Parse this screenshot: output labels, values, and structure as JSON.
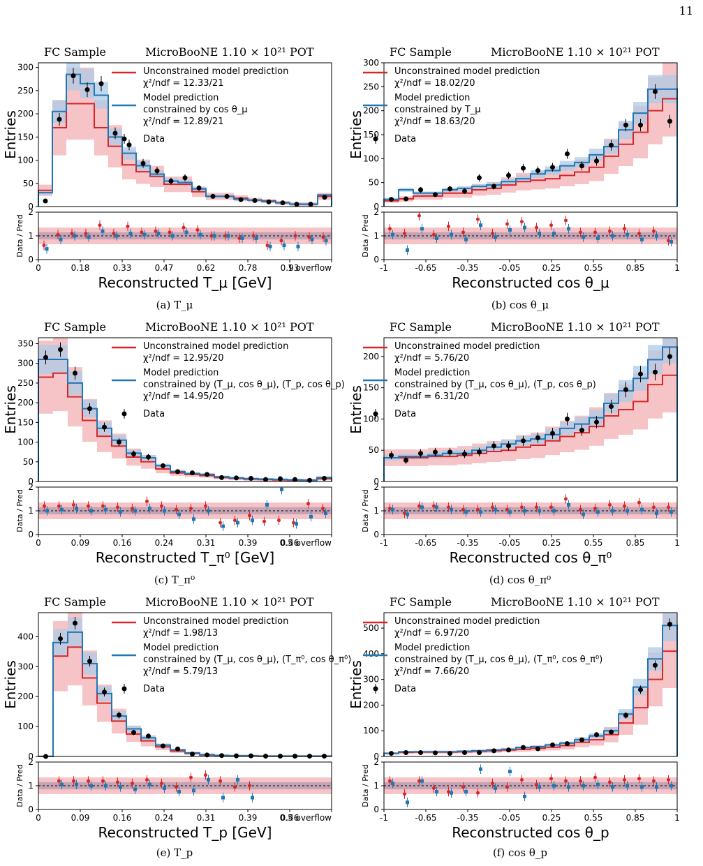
{
  "page_number": "11",
  "colors": {
    "red": "#d62728",
    "blue": "#1f77b4",
    "red_band": "#f4b4b8",
    "blue_band": "#aecbe6",
    "overlap": "#9a88a8"
  },
  "panels": [
    {
      "id": "a",
      "caption": "(a) T_μ",
      "header_left": "FC Sample",
      "header_right": "MicroBooNE  1.10 × 10²¹ POT",
      "ylabel": "Entries",
      "ratio_ylabel": "Data / Pred",
      "xlabel": "Reconstructed T_μ [GeV]",
      "legend": [
        "Unconstrained model prediction",
        "χ²/ndf = 12.33/21",
        "Model prediction",
        "constrained by cos θ_μ",
        "χ²/ndf = 12.89/21",
        "Data"
      ]
    },
    {
      "id": "b",
      "caption": "(b) cos θ_μ",
      "header_left": "FC Sample",
      "header_right": "MicroBooNE  1.10 × 10²¹ POT",
      "ylabel": "Entries",
      "ratio_ylabel": "Data / Pred",
      "xlabel": "Reconstructed cos θ_μ",
      "legend": [
        "Unconstrained model prediction",
        "χ²/ndf = 18.02/20",
        "Model prediction",
        "constrained by T_μ",
        "χ²/ndf = 18.63/20",
        "Data"
      ]
    },
    {
      "id": "c",
      "caption": "(c) T_π⁰",
      "header_left": "FC Sample",
      "header_right": "MicroBooNE  1.10 × 10²¹ POT",
      "ylabel": "Entries",
      "ratio_ylabel": "Data / Pred",
      "xlabel": "Reconstructed T_π⁰ [GeV]",
      "legend": [
        "Unconstrained model prediction",
        "χ²/ndf = 12.95/20",
        "Model prediction",
        "constrained by (T_μ, cos θ_μ), (T_p, cos θ_p)",
        "χ²/ndf = 14.95/20",
        "Data"
      ]
    },
    {
      "id": "d",
      "caption": "(d) cos θ_π⁰",
      "header_left": "FC Sample",
      "header_right": "MicroBooNE  1.10 × 10²¹ POT",
      "ylabel": "Entries",
      "ratio_ylabel": "Data / Pred",
      "xlabel": "Reconstructed cos θ_π⁰",
      "legend": [
        "Unconstrained model prediction",
        "χ²/ndf = 5.76/20",
        "Model prediction",
        "constrained by (T_μ, cos θ_μ), (T_p, cos θ_p)",
        "χ²/ndf = 6.31/20",
        "Data"
      ]
    },
    {
      "id": "e",
      "caption": "(e) T_p",
      "header_left": "FC Sample",
      "header_right": "MicroBooNE  1.10 × 10²¹ POT",
      "ylabel": "Entries",
      "ratio_ylabel": "Data / Pred",
      "xlabel": "Reconstructed T_p [GeV]",
      "legend": [
        "Unconstrained model prediction",
        "χ²/ndf = 1.98/13",
        "Model prediction",
        "constrained by (T_μ, cos θ_μ), (T_π⁰, cos θ_π⁰)",
        "χ²/ndf = 5.79/13",
        "Data"
      ]
    },
    {
      "id": "f",
      "caption": "(f) cos θ_p",
      "header_left": "FC Sample",
      "header_right": "MicroBooNE  1.10 × 10²¹ POT",
      "ylabel": "Entries",
      "ratio_ylabel": "Data / Pred",
      "xlabel": "Reconstructed cos θ_p",
      "legend": [
        "Unconstrained model prediction",
        "χ²/ndf = 6.97/20",
        "Model prediction",
        "constrained by (T_μ, cos θ_μ), (T_π⁰, cos θ_π⁰)",
        "χ²/ndf = 7.66/20",
        "Data"
      ]
    }
  ],
  "chart_data": [
    {
      "type": "histogram",
      "panel": "a",
      "xticks": [
        "0",
        "0.18",
        "0.33",
        "0.47",
        "0.62",
        "0.78",
        "0.93",
        "1 overflow"
      ],
      "yticks": [
        0,
        50,
        100,
        150,
        200,
        250,
        300
      ],
      "ylim": [
        0,
        310
      ],
      "ratio_yticks": [
        0,
        1,
        2
      ],
      "ratio_ylim": [
        0,
        2
      ],
      "data": [
        12,
        188,
        282,
        252,
        265,
        158,
        133,
        93,
        77,
        55,
        62,
        40,
        22,
        22,
        15,
        13,
        10,
        8,
        5,
        5,
        20
      ],
      "unconstrained": [
        35,
        170,
        222,
        222,
        170,
        130,
        90,
        75,
        65,
        48,
        48,
        32,
        22,
        22,
        18,
        14,
        12,
        8,
        5,
        5,
        22
      ],
      "constrained": [
        30,
        205,
        285,
        265,
        240,
        150,
        115,
        88,
        70,
        55,
        52,
        38,
        22,
        22,
        16,
        14,
        11,
        8,
        5,
        5,
        25
      ],
      "ratio_unconstrained": [
        0.6,
        1.05,
        1.1,
        1.1,
        1.45,
        1.1,
        1.4,
        1.15,
        1.2,
        1.15,
        1.35,
        1.25,
        1.0,
        1.0,
        0.9,
        1.0,
        0.6,
        0.8,
        1.0,
        0.95,
        0.95
      ],
      "ratio_constrained": [
        0.45,
        0.85,
        1.0,
        0.95,
        1.2,
        1.0,
        1.1,
        1.05,
        1.1,
        1.0,
        1.15,
        1.05,
        1.0,
        1.0,
        0.9,
        0.9,
        0.55,
        0.6,
        0.55,
        0.85,
        0.8
      ]
    },
    {
      "type": "histogram",
      "panel": "b",
      "xticks": [
        "-1",
        "-0.65",
        "-0.35",
        "-0.05",
        "0.25",
        "0.55",
        "0.85",
        "1"
      ],
      "yticks": [
        0,
        50,
        100,
        150,
        200,
        250,
        300
      ],
      "ylim": [
        0,
        300
      ],
      "ratio_yticks": [
        0,
        1,
        2
      ],
      "ratio_ylim": [
        0,
        2
      ],
      "data": [
        15,
        16,
        35,
        25,
        37,
        32,
        60,
        42,
        65,
        80,
        75,
        82,
        110,
        85,
        95,
        128,
        170,
        170,
        240,
        178
      ],
      "unconstrained": [
        12,
        16,
        22,
        22,
        28,
        28,
        35,
        38,
        45,
        52,
        55,
        58,
        65,
        72,
        82,
        105,
        130,
        155,
        200,
        225
      ],
      "constrained": [
        15,
        35,
        28,
        28,
        35,
        38,
        42,
        45,
        52,
        58,
        68,
        75,
        85,
        92,
        108,
        125,
        160,
        195,
        245,
        245
      ],
      "ratio_unconstrained": [
        1.3,
        1.1,
        1.85,
        1.05,
        1.4,
        1.15,
        1.7,
        1.1,
        1.5,
        1.6,
        1.35,
        1.45,
        1.65,
        1.15,
        1.15,
        1.2,
        1.3,
        1.1,
        1.2,
        0.8
      ],
      "ratio_constrained": [
        1.05,
        0.4,
        1.3,
        0.9,
        1.05,
        0.85,
        1.45,
        0.95,
        1.25,
        1.35,
        1.1,
        1.1,
        1.3,
        0.95,
        0.9,
        1.0,
        1.05,
        0.85,
        1.0,
        0.75
      ]
    },
    {
      "type": "histogram",
      "panel": "c",
      "xticks": [
        "0",
        "0.09",
        "0.16",
        "0.24",
        "0.31",
        "0.39",
        "0.46",
        "0.5 overflow"
      ],
      "yticks": [
        0,
        50,
        100,
        150,
        200,
        250,
        300,
        350
      ],
      "ylim": [
        0,
        365
      ],
      "ratio_yticks": [
        0,
        1,
        2
      ],
      "ratio_ylim": [
        0,
        2
      ],
      "data": [
        315,
        335,
        275,
        185,
        138,
        100,
        70,
        62,
        40,
        25,
        22,
        18,
        10,
        9,
        8,
        5,
        7,
        5,
        3,
        8
      ],
      "unconstrained": [
        265,
        275,
        215,
        155,
        115,
        90,
        62,
        50,
        32,
        22,
        18,
        15,
        10,
        8,
        6,
        5,
        4,
        3,
        3,
        7
      ],
      "constrained": [
        310,
        310,
        250,
        185,
        135,
        105,
        72,
        60,
        40,
        25,
        20,
        18,
        12,
        9,
        7,
        6,
        5,
        4,
        3,
        10
      ],
      "ratio_unconstrained": [
        1.2,
        1.2,
        1.25,
        1.2,
        1.2,
        1.15,
        1.1,
        1.4,
        1.2,
        1.05,
        1.1,
        1.2,
        0.5,
        0.6,
        0.8,
        0.55,
        0.6,
        0.5,
        1.3,
        1.1
      ],
      "ratio_constrained": [
        1.0,
        1.05,
        1.1,
        1.0,
        1.05,
        0.95,
        1.0,
        1.1,
        1.0,
        0.85,
        0.65,
        1.0,
        0.35,
        0.5,
        0.6,
        1.25,
        1.9,
        0.45,
        0.75,
        0.9
      ]
    },
    {
      "type": "histogram",
      "panel": "d",
      "xticks": [
        "-1",
        "-0.65",
        "-0.35",
        "-0.05",
        "0.25",
        "0.55",
        "0.85",
        "1"
      ],
      "yticks": [
        0,
        50,
        100,
        150,
        200
      ],
      "ylim": [
        0,
        230
      ],
      "ratio_yticks": [
        0,
        1,
        2
      ],
      "ratio_ylim": [
        0,
        2
      ],
      "data": [
        42,
        34,
        45,
        47,
        47,
        44,
        47,
        57,
        57,
        65,
        70,
        77,
        100,
        82,
        95,
        120,
        147,
        172,
        175,
        200
      ],
      "unconstrained": [
        38,
        38,
        38,
        40,
        40,
        42,
        45,
        48,
        50,
        55,
        58,
        65,
        72,
        78,
        88,
        105,
        115,
        128,
        155,
        170
      ],
      "constrained": [
        38,
        40,
        40,
        42,
        45,
        45,
        50,
        55,
        60,
        65,
        68,
        75,
        85,
        92,
        102,
        125,
        145,
        165,
        195,
        215
      ],
      "ratio_unconstrained": [
        1.1,
        0.9,
        1.2,
        1.2,
        1.15,
        1.05,
        1.05,
        1.15,
        1.05,
        1.15,
        1.15,
        1.15,
        1.5,
        1.05,
        1.1,
        1.25,
        1.2,
        1.35,
        1.15,
        1.15
      ],
      "ratio_constrained": [
        1.05,
        0.85,
        1.15,
        1.15,
        1.05,
        0.95,
        0.95,
        1.05,
        0.95,
        1.0,
        1.0,
        1.0,
        1.25,
        0.85,
        0.95,
        1.0,
        1.0,
        1.05,
        0.9,
        0.95
      ]
    },
    {
      "type": "histogram",
      "panel": "e",
      "xticks": [
        "0",
        "0.09",
        "0.16",
        "0.24",
        "0.31",
        "0.39",
        "0.46",
        "0.5 overflow"
      ],
      "yticks": [
        0,
        100,
        200,
        300,
        400
      ],
      "ylim": [
        0,
        480
      ],
      "ratio_yticks": [
        0,
        1,
        2
      ],
      "ratio_ylim": [
        0,
        2
      ],
      "data": [
        0,
        393,
        445,
        318,
        215,
        138,
        80,
        68,
        35,
        25,
        8,
        5,
        3,
        2,
        2,
        1,
        1,
        1,
        1,
        1
      ],
      "unconstrained": [
        0,
        335,
        365,
        262,
        178,
        118,
        75,
        52,
        32,
        18,
        10,
        5,
        3,
        2,
        2,
        1,
        1,
        1,
        1,
        1
      ],
      "constrained": [
        0,
        380,
        415,
        310,
        210,
        135,
        92,
        62,
        38,
        22,
        12,
        6,
        3,
        2,
        2,
        1,
        1,
        1,
        1,
        1
      ],
      "ratio_unconstrained": [
        0,
        1.2,
        1.2,
        1.2,
        1.2,
        1.15,
        1.1,
        1.25,
        1.1,
        0.95,
        1.35,
        1.45,
        1.2,
        0.95,
        1.0,
        0.0,
        0.0,
        0.0,
        0.0,
        0.0
      ],
      "ratio_constrained": [
        0,
        1.05,
        1.05,
        1.0,
        1.0,
        0.95,
        0.85,
        1.05,
        0.9,
        0.75,
        0.8,
        1.25,
        0.5,
        1.25,
        0.5,
        0.0,
        0.0,
        0.0,
        0.0,
        0.0
      ]
    },
    {
      "type": "histogram",
      "panel": "f",
      "xticks": [
        "-1",
        "-0.65",
        "-0.35",
        "-0.05",
        "0.25",
        "0.55",
        "0.85",
        "1"
      ],
      "yticks": [
        0,
        100,
        200,
        300,
        400,
        500
      ],
      "ylim": [
        0,
        560
      ],
      "ratio_yticks": [
        0,
        1,
        2
      ],
      "ratio_ylim": [
        0,
        2
      ],
      "data": [
        12,
        15,
        15,
        14,
        12,
        15,
        15,
        22,
        25,
        35,
        30,
        45,
        50,
        65,
        85,
        95,
        160,
        260,
        355,
        515
      ],
      "unconstrained": [
        12,
        16,
        17,
        17,
        17,
        18,
        20,
        22,
        25,
        28,
        32,
        36,
        42,
        55,
        65,
        85,
        130,
        190,
        300,
        410
      ],
      "constrained": [
        12,
        18,
        18,
        18,
        18,
        20,
        22,
        25,
        28,
        35,
        38,
        45,
        52,
        65,
        80,
        100,
        165,
        270,
        380,
        510
      ],
      "ratio_unconstrained": [
        1.2,
        0.65,
        1.2,
        0.9,
        0.75,
        0.95,
        0.7,
        1.1,
        0.95,
        1.25,
        1.05,
        1.3,
        1.2,
        1.2,
        1.35,
        1.15,
        1.25,
        1.3,
        1.2,
        1.25
      ],
      "ratio_constrained": [
        1.1,
        0.3,
        1.2,
        0.75,
        0.7,
        0.75,
        1.7,
        0.9,
        1.6,
        0.55,
        0.95,
        1.0,
        0.95,
        1.0,
        1.05,
        0.95,
        1.0,
        0.95,
        0.95,
        1.0
      ]
    }
  ]
}
